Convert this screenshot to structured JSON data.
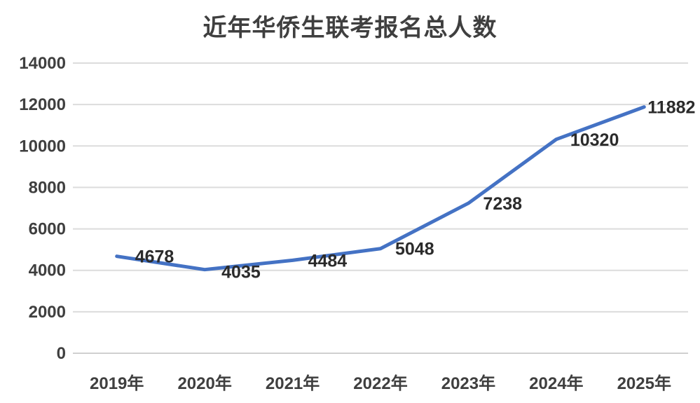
{
  "chart_data": {
    "type": "line",
    "title": "近年华侨生联考报名总人数",
    "categories": [
      "2019年",
      "2020年",
      "2021年",
      "2022年",
      "2023年",
      "2024年",
      "2025年"
    ],
    "values": [
      4678,
      4035,
      4484,
      5048,
      7238,
      10320,
      11882
    ],
    "data_labels": [
      "4678",
      "4035",
      "4484",
      "5048",
      "7238",
      "10320",
      "11882"
    ],
    "xlabel": "",
    "ylabel": "",
    "ylim": [
      0,
      14000
    ],
    "yticks": [
      0,
      2000,
      4000,
      6000,
      8000,
      10000,
      12000,
      14000
    ],
    "grid": "horizontal",
    "legend": "none",
    "colors": {
      "line": "#4472C4",
      "gridline": "#DCDCDC",
      "axis_line": "#D0D0D0",
      "tick_text": "#3F3F3F",
      "data_label_text": "#2B2B2B",
      "title_text": "#3F3F3F",
      "background": "#FFFFFF"
    }
  }
}
